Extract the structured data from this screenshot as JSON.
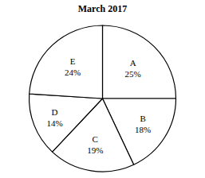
{
  "chart_data": {
    "type": "pie",
    "title": "March 2017",
    "categories": [
      "A",
      "B",
      "C",
      "D",
      "E"
    ],
    "values": [
      25,
      18,
      19,
      14,
      24
    ],
    "value_labels": [
      "25%",
      "18%",
      "19%",
      "14%",
      "24%"
    ],
    "colors": [
      "#ffffff",
      "#ffffff",
      "#ffffff",
      "#ffffff",
      "#ffffff"
    ],
    "data_labels": true
  }
}
